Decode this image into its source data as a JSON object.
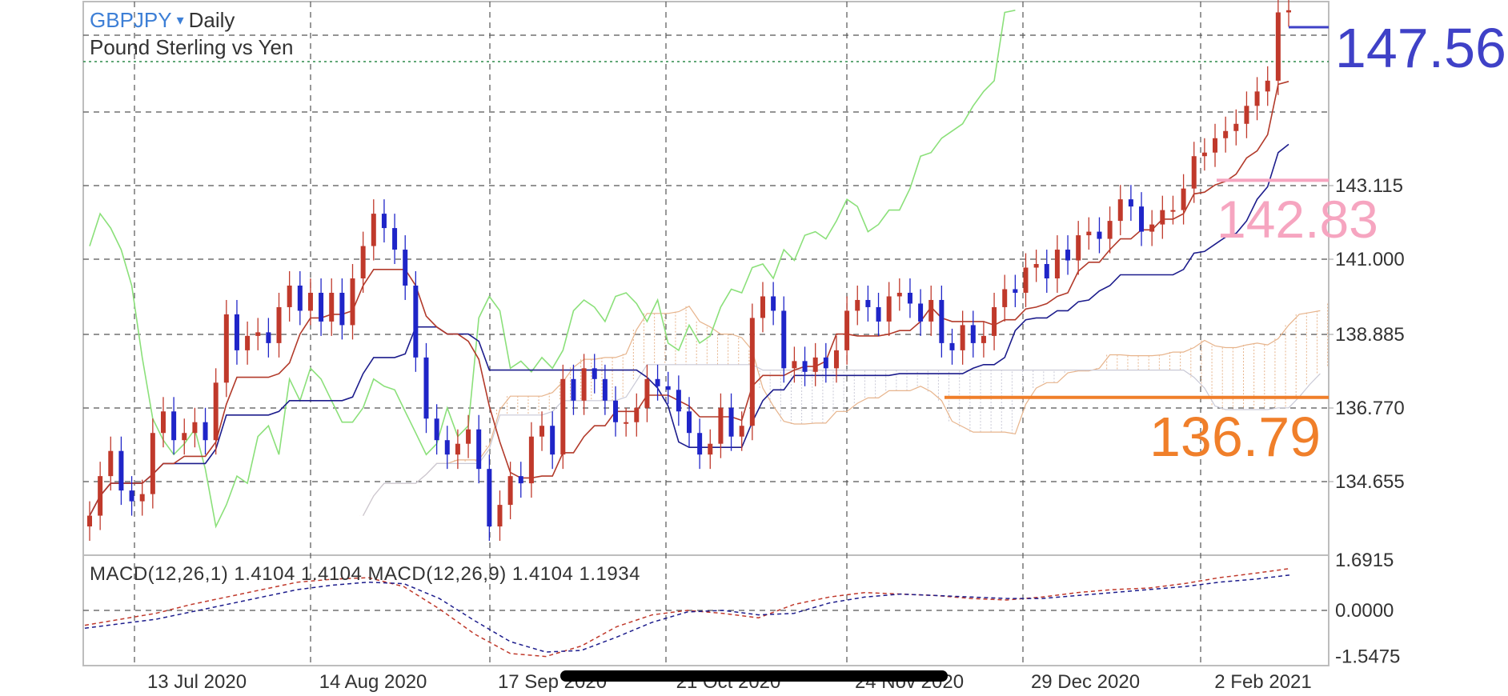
{
  "header": {
    "symbol": "GBPJPY",
    "caret": "▾",
    "timeframe": "Daily",
    "description": "Pound Sterling vs Yen"
  },
  "price_labels": {
    "last": "147.56",
    "pink_line": "142.83",
    "orange_line": "136.79"
  },
  "macd_label": "MACD(12,26,1) 1.4104 1.4104 MACD(12,26,9) 1.4104 1.1934",
  "colors": {
    "bull": "#c0392b",
    "bear": "#1f25c8",
    "tenkan": "#b23a2a",
    "kijun": "#1c1c8c",
    "chikou": "#8be07a",
    "cloud_a": "#e7b48c",
    "cloud_b": "#c9c9d6",
    "pink": "#f6a5c0",
    "orange": "#f07f2a",
    "last": "#3f41c7"
  },
  "chart_data": [
    {
      "type": "candlestick",
      "title": "GBPJPY Daily",
      "subtitle": "Pound Sterling vs Yen",
      "y_ticks": [
        "143.115",
        "141.000",
        "138.885",
        "136.770",
        "134.655"
      ],
      "x_ticks": [
        "13 Jul 2020",
        "14 Aug 2020",
        "17 Sep 2020",
        "21 Oct 2020",
        "24 Nov 2020",
        "29 Dec 2020",
        "2 Feb 2021"
      ],
      "ylim": [
        132.4,
        147.8
      ],
      "grid": true,
      "levels": [
        {
          "label": "142.83",
          "value": 142.83,
          "color": "pink"
        },
        {
          "label": "136.79",
          "value": 136.79,
          "color": "orange"
        }
      ],
      "last_price": 147.56,
      "close": [
        133.5,
        134.6,
        135.3,
        134.2,
        133.9,
        134.1,
        135.8,
        136.4,
        135.6,
        135.8,
        136.1,
        135.6,
        137.2,
        139.1,
        138.1,
        138.5,
        138.6,
        138.3,
        139.3,
        139.9,
        139.2,
        139.7,
        138.9,
        139.7,
        138.8,
        140.1,
        141.0,
        141.9,
        141.5,
        140.9,
        139.9,
        137.9,
        136.2,
        135.6,
        135.2,
        135.5,
        135.9,
        134.8,
        133.2,
        133.8,
        134.6,
        134.4,
        135.7,
        136.0,
        135.2,
        137.3,
        136.7,
        137.6,
        137.3,
        136.7,
        136.1,
        136.1,
        136.5,
        137.3,
        137.1,
        137.0,
        136.4,
        135.8,
        135.2,
        135.5,
        136.5,
        135.7,
        136.0,
        139.0,
        139.6,
        139.2,
        137.6,
        137.8,
        137.5,
        137.9,
        137.6,
        138.1,
        139.2,
        139.5,
        139.3,
        138.9,
        139.6,
        139.7,
        139.4,
        138.9,
        139.5,
        138.3,
        138.1,
        138.8,
        138.3,
        138.5,
        139.3,
        139.8,
        139.7,
        140.4,
        140.5,
        140.1,
        140.9,
        140.6,
        141.3,
        141.4,
        141.2,
        141.7,
        142.3,
        142.1,
        141.4,
        141.6,
        142.0,
        142.0,
        142.6,
        143.5,
        143.6,
        144.0,
        144.2,
        144.4,
        144.9,
        145.3,
        145.6,
        147.5,
        147.56
      ]
    },
    {
      "type": "line",
      "title": "MACD(12,26,1) 1.4104 1.4104 MACD(12,26,9) 1.4104 1.1934",
      "y_ticks": [
        "1.6915",
        "0.0000",
        "-1.5475"
      ],
      "ylim": [
        -1.75,
        1.75
      ],
      "series": [
        {
          "name": "MACD(12,26,1)",
          "values": [
            -0.5,
            -0.3,
            -0.1,
            0.2,
            0.45,
            0.7,
            0.95,
            1.05,
            1.1,
            0.8,
            0.05,
            -0.8,
            -1.45,
            -1.55,
            -1.2,
            -0.55,
            -0.15,
            0.0,
            -0.1,
            -0.25,
            0.2,
            0.45,
            0.6,
            0.55,
            0.5,
            0.4,
            0.35,
            0.45,
            0.6,
            0.7,
            0.75,
            0.9,
            1.1,
            1.25,
            1.4104
          ]
        },
        {
          "name": "MACD(12,26,9)",
          "values": [
            -0.6,
            -0.45,
            -0.3,
            -0.05,
            0.2,
            0.45,
            0.7,
            0.85,
            0.95,
            0.9,
            0.4,
            -0.35,
            -1.05,
            -1.4,
            -1.35,
            -0.9,
            -0.4,
            -0.05,
            0.0,
            -0.15,
            -0.1,
            0.25,
            0.45,
            0.55,
            0.5,
            0.45,
            0.4,
            0.4,
            0.5,
            0.6,
            0.7,
            0.8,
            0.95,
            1.05,
            1.1934
          ]
        }
      ]
    }
  ]
}
